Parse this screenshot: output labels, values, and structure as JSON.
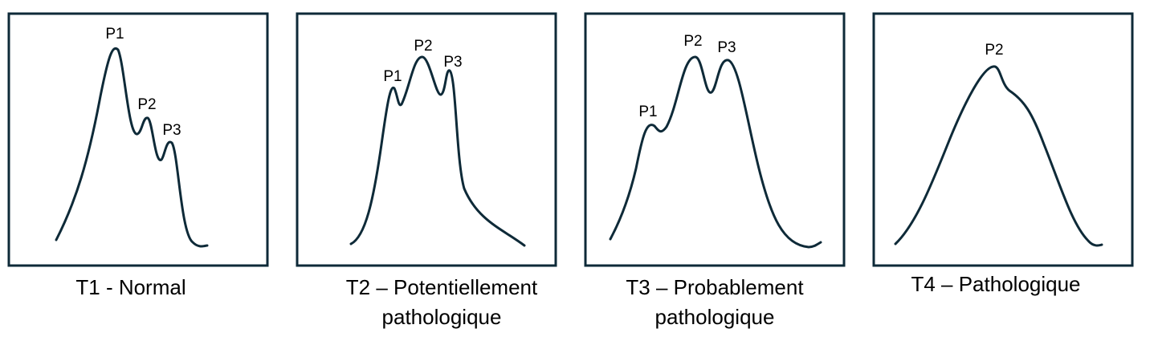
{
  "colors": {
    "stroke": "#0e2a38",
    "text": "#000000"
  },
  "panels": [
    {
      "caption": [
        "T1 - Normal"
      ],
      "peaks": [
        "P1",
        "P2",
        "P3"
      ]
    },
    {
      "caption": [
        "T2 – Potentiellement",
        "pathologique"
      ],
      "peaks": [
        "P1",
        "P2",
        "P3"
      ]
    },
    {
      "caption": [
        "T3 – Probablement",
        "pathologique"
      ],
      "peaks": [
        "P1",
        "P2",
        "P3"
      ]
    },
    {
      "caption": [
        "T4 – Pathologique"
      ],
      "peaks": [
        "P2"
      ]
    }
  ]
}
